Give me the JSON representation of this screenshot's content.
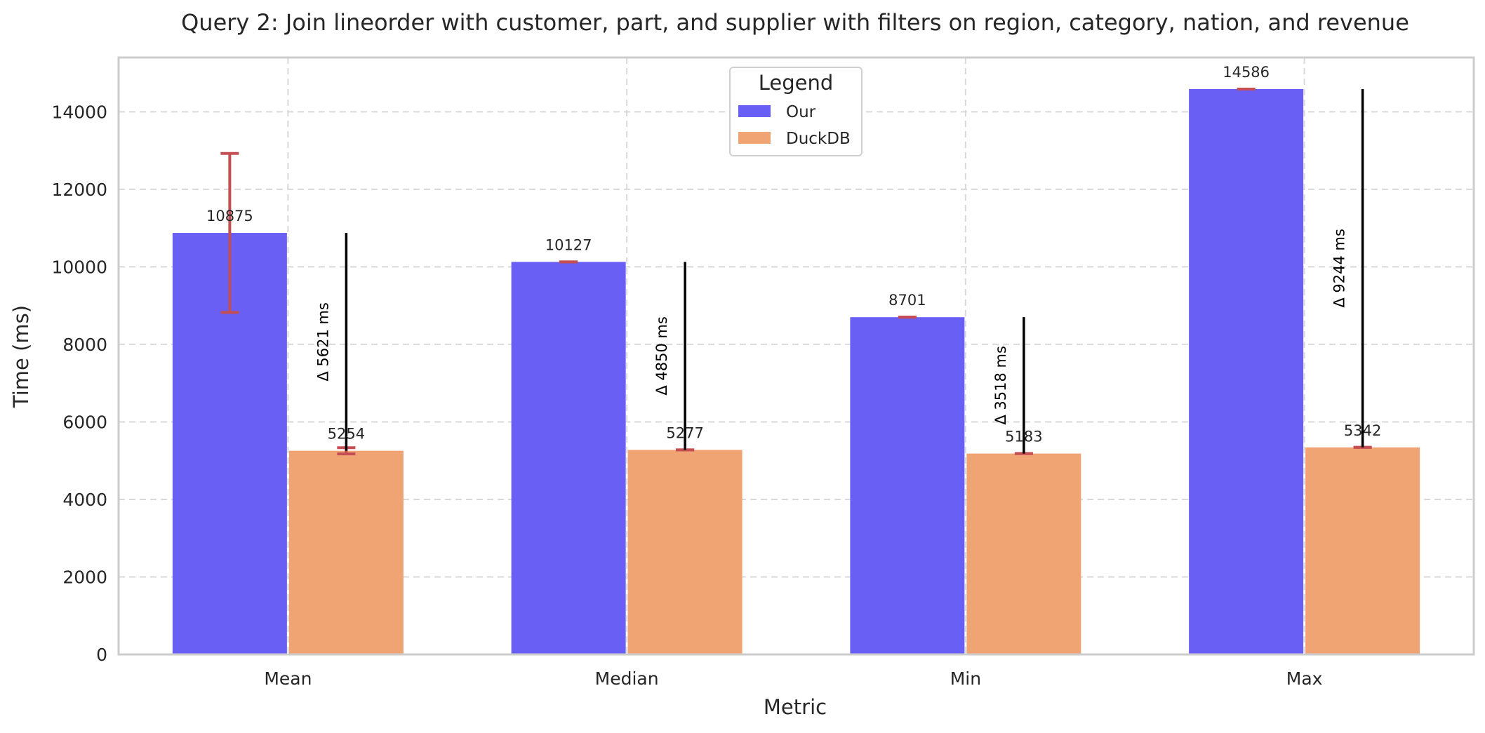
{
  "chart_data": {
    "type": "bar",
    "title": "Query 2: Join lineorder with customer, part, and supplier with filters on region, category, nation, and revenue",
    "xlabel": "Metric",
    "ylabel": "Time (ms)",
    "categories": [
      "Mean",
      "Median",
      "Min",
      "Max"
    ],
    "ylim": [
      0,
      15400
    ],
    "yticks": [
      0,
      2000,
      4000,
      6000,
      8000,
      10000,
      12000,
      14000
    ],
    "grid": true,
    "legend": {
      "title": "Legend",
      "placement": "top-center"
    },
    "series": [
      {
        "name": "Our",
        "color": "#6a5ff5",
        "values": [
          10875,
          10127,
          8701,
          14586
        ],
        "labels": [
          "10875",
          "10127",
          "8701",
          "14586"
        ],
        "error": [
          2050,
          0,
          0,
          0
        ]
      },
      {
        "name": "DuckDB",
        "color": "#f0a373",
        "values": [
          5254,
          5277,
          5183,
          5342
        ],
        "labels": [
          "5254",
          "5277",
          "5183",
          "5342"
        ],
        "error": [
          80,
          0,
          0,
          0
        ]
      }
    ],
    "deltas": [
      {
        "label": "Δ 5621 ms",
        "from": 5254,
        "to": 10875
      },
      {
        "label": "Δ 4850 ms",
        "from": 5277,
        "to": 10127
      },
      {
        "label": "Δ 3518 ms",
        "from": 5183,
        "to": 8701
      },
      {
        "label": "Δ 9244 ms",
        "from": 5342,
        "to": 14586
      }
    ],
    "error_color": "#c44e52"
  }
}
